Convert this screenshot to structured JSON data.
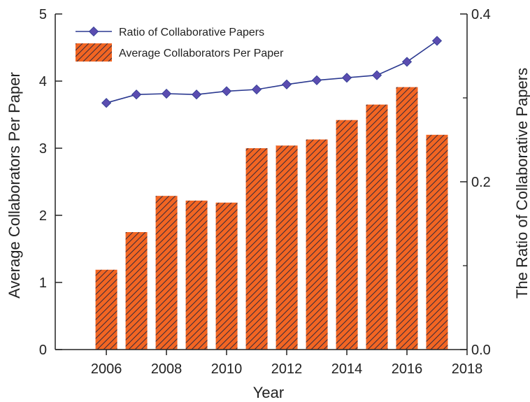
{
  "chart_data": {
    "type": "bar",
    "xlabel": "Year",
    "ylabel": "Average Collaborators Per Paper",
    "y2label": "The Ratio of Collaborative Papers",
    "x": [
      2006,
      2007,
      2008,
      2009,
      2010,
      2011,
      2012,
      2013,
      2014,
      2015,
      2016,
      2017
    ],
    "xlim": [
      2004.3,
      2018
    ],
    "xticks": [
      2006,
      2008,
      2010,
      2012,
      2014,
      2016,
      2018
    ],
    "ylim": [
      0,
      5
    ],
    "yticks": [
      0,
      1,
      2,
      3,
      4,
      5
    ],
    "y2lim": [
      0,
      0.4
    ],
    "y2ticks": [
      "0.0",
      "0.2",
      "0.4"
    ],
    "y2minor": [
      0.1,
      0.3
    ],
    "legend_position": "top-left",
    "grid": false,
    "series": [
      {
        "name": "Average Collaborators Per Paper",
        "type": "bar",
        "axis": "left",
        "color": "#f26522",
        "hatch": "diagonal",
        "values": [
          1.19,
          1.75,
          2.29,
          2.22,
          2.19,
          3.0,
          3.04,
          3.13,
          3.42,
          3.65,
          3.91,
          3.2
        ]
      },
      {
        "name": "Ratio of Collaborative Papers",
        "type": "line",
        "axis": "right",
        "color": "#2b3990",
        "marker_color": "#5b4db0",
        "marker": "diamond",
        "values": [
          0.294,
          0.304,
          0.305,
          0.304,
          0.308,
          0.31,
          0.316,
          0.321,
          0.324,
          0.327,
          0.343,
          0.368
        ]
      }
    ]
  }
}
